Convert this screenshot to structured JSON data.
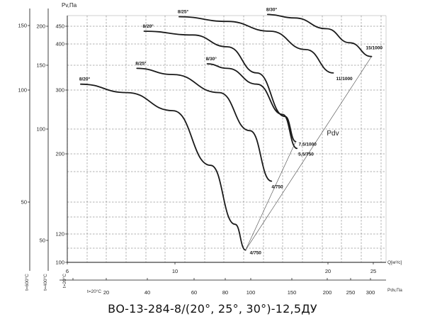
{
  "caption": "ВО-13-284-8/(20°, 25°, 30°)-12,5ДУ",
  "chart_data": {
    "type": "line",
    "title": "",
    "y_axis_title": "Pv,Па",
    "x_axis_title": "Q[м³/c]",
    "pdv_axis_title": "Pdv,Па",
    "diagonal_label": "Pdv",
    "x_scale": "log",
    "xlim": [
      6,
      28
    ],
    "y_scale": "log",
    "ylim": [
      45,
      165
    ],
    "grid": true,
    "x_ticks": [
      "6",
      "10",
      "20",
      "25"
    ],
    "pdv_ticks": [
      "20",
      "40",
      "60",
      "80",
      "100",
      "150",
      "200",
      "250",
      "300"
    ],
    "left_scales": [
      {
        "labels": [
          "150",
          "100",
          "50"
        ],
        "rotated_label": "t=600°C"
      },
      {
        "labels": [
          "200",
          "150",
          "100",
          "50"
        ],
        "rotated_label": "t=400°C"
      },
      {
        "labels": [
          "450",
          "400",
          "300",
          "200",
          "120",
          "100"
        ],
        "rotated_label": "t=20°C"
      }
    ],
    "pv_ticks_main": [
      "200",
      "150",
      "100"
    ],
    "temperature_note": "t=20°C",
    "series": [
      {
        "name": "8/20°",
        "end_label": "4/750",
        "x": [
          6.4,
          8,
          10,
          12,
          13.5,
          14.2
        ],
        "y": [
          115,
          110,
          100,
          75,
          55,
          48
        ]
      },
      {
        "name": "8/25°",
        "end_label": "4/750",
        "x": [
          8.4,
          10,
          12.5,
          14.5,
          16.1
        ],
        "y": [
          125,
          121,
          110,
          90,
          69
        ]
      },
      {
        "name": "8/30°",
        "end_label": "5,5/750",
        "x": [
          11.8,
          13,
          15,
          17,
          18.2
        ],
        "y": [
          128,
          125,
          115,
          98,
          82
        ]
      },
      {
        "name": "8/20°",
        "end_label": "7,5/1000",
        "x": [
          8.7,
          11,
          13,
          15,
          17.2,
          18.1
        ],
        "y": [
          152,
          149,
          140,
          122,
          97,
          85
        ]
      },
      {
        "name": "8/25°",
        "end_label": "11/1000",
        "x": [
          10.3,
          13,
          16,
          19,
          21.7
        ],
        "y": [
          164,
          160,
          152,
          138,
          122
        ]
      },
      {
        "name": "8/30°",
        "end_label": "15/1000",
        "x": [
          15.8,
          18,
          21,
          23.5,
          26.1
        ],
        "y": [
          166,
          163,
          154,
          143,
          133
        ]
      }
    ]
  }
}
